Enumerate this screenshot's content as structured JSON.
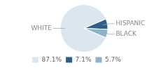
{
  "chart_data": {
    "type": "pie",
    "categories": [
      "WHITE",
      "HISPANIC",
      "BLACK"
    ],
    "values": [
      87.1,
      7.1,
      5.7
    ],
    "value_labels": [
      "87.1%",
      "7.1%",
      "5.7%"
    ],
    "colors": [
      "#dce6f0",
      "#2e5f8a",
      "#8cb4c8"
    ],
    "legend": "bottom left"
  }
}
